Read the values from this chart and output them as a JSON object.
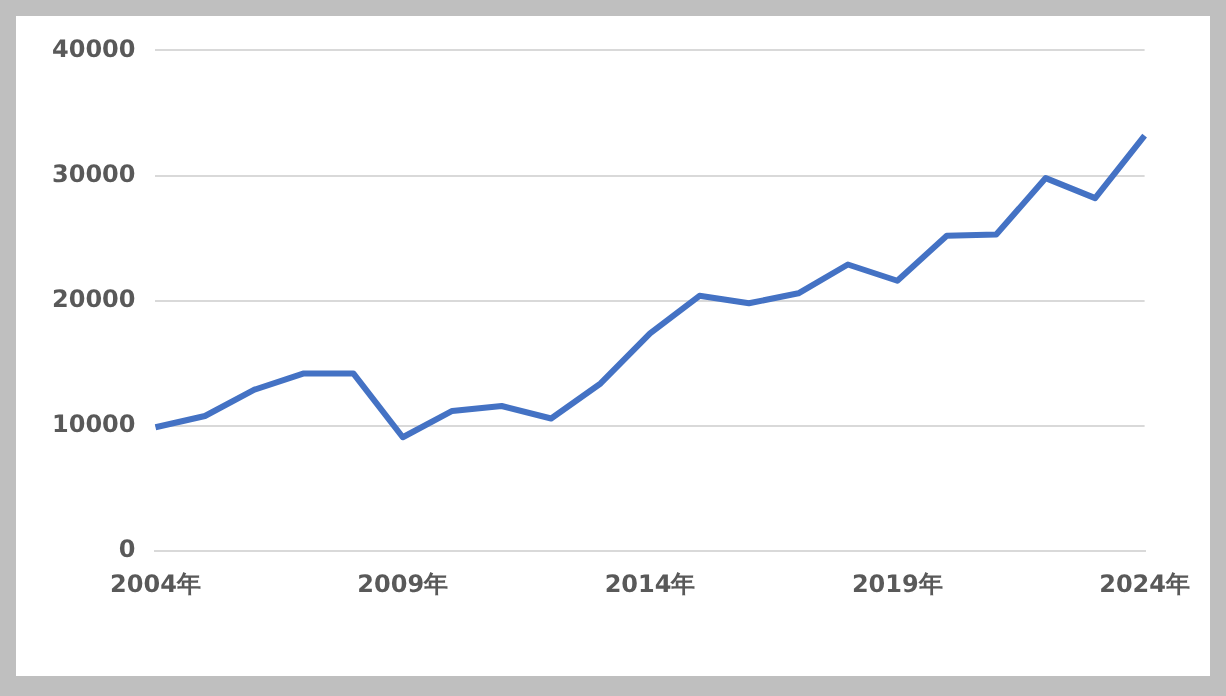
{
  "chart_data": {
    "type": "line",
    "categories": [
      "2004年",
      null,
      null,
      null,
      null,
      "2009年",
      null,
      null,
      null,
      null,
      "2014年",
      null,
      null,
      null,
      null,
      "2019年",
      null,
      null,
      null,
      null,
      "2024年"
    ],
    "series": [
      {
        "color": "#4472c4",
        "values": [
          9900,
          10800,
          12900,
          14200,
          14200,
          9100,
          11200,
          11600,
          10600,
          13400,
          17400,
          20400,
          19800,
          20600,
          22900,
          21600,
          25200,
          25300,
          29800,
          28200,
          33200
        ]
      }
    ],
    "ylim": [
      0,
      40000
    ],
    "yticks": [
      0,
      10000,
      20000,
      30000,
      40000
    ],
    "grid": "y",
    "legend": false,
    "marker": "none",
    "line_style": "solid"
  }
}
